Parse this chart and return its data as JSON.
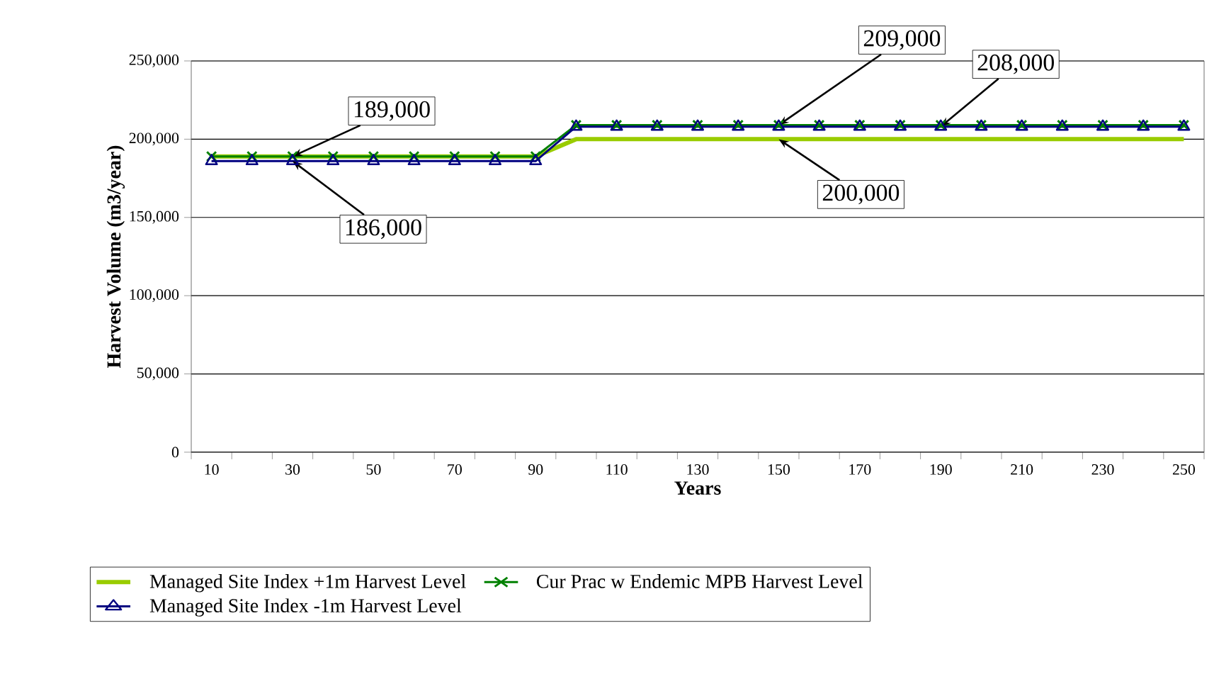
{
  "chart_data": {
    "type": "line",
    "xlabel": "Years",
    "ylabel": "Harvest Volume (m3/year)",
    "categories": [
      "10",
      null,
      "30",
      null,
      "50",
      null,
      "70",
      null,
      "90",
      null,
      "110",
      null,
      "130",
      null,
      "150",
      null,
      "170",
      null,
      "190",
      null,
      "210",
      null,
      "230",
      null,
      "250"
    ],
    "series": [
      {
        "name": "Managed Site Index +1m Harvest Level",
        "color": "#99cc00",
        "marker": "none",
        "values": [
          189000,
          189000,
          189000,
          189000,
          189000,
          189000,
          189000,
          189000,
          189000,
          200000,
          200000,
          200000,
          200000,
          200000,
          200000,
          200000,
          200000,
          200000,
          200000,
          200000,
          200000,
          200000,
          200000,
          200000,
          200000
        ]
      },
      {
        "name": "Cur Prac w Endemic MPB Harvest Level",
        "color": "#008000",
        "marker": "cross",
        "values": [
          189000,
          189000,
          189000,
          189000,
          189000,
          189000,
          189000,
          189000,
          189000,
          209000,
          209000,
          209000,
          209000,
          209000,
          209000,
          209000,
          209000,
          209000,
          209000,
          209000,
          209000,
          209000,
          209000,
          209000,
          209000
        ]
      },
      {
        "name": "Managed Site Index -1m Harvest Level",
        "color": "#000080",
        "marker": "triangle",
        "values": [
          186000,
          186000,
          186000,
          186000,
          186000,
          186000,
          186000,
          186000,
          186000,
          208000,
          208000,
          208000,
          208000,
          208000,
          208000,
          208000,
          208000,
          208000,
          208000,
          208000,
          208000,
          208000,
          208000,
          208000,
          208000
        ]
      }
    ],
    "ylim": [
      0,
      250000
    ],
    "yticks": [
      0,
      {
        "value": 50000,
        "label": "50,000"
      },
      {
        "value": 100000,
        "label": "100,000"
      },
      {
        "value": 150000,
        "label": "150,000"
      },
      {
        "value": 200000,
        "label": "200,000"
      },
      {
        "value": 250000,
        "label": "250,000"
      }
    ],
    "grid": "y",
    "legend": "bottom",
    "annotations": [
      {
        "text": "189,000",
        "x": "30",
        "y": 189000
      },
      {
        "text": "186,000",
        "x": "30",
        "y": 186000
      },
      {
        "text": "209,000",
        "x": "150",
        "y": 209000
      },
      {
        "text": "208,000",
        "x": "190",
        "y": 208000
      },
      {
        "text": "200,000",
        "x": "150",
        "y": 200000
      }
    ]
  }
}
